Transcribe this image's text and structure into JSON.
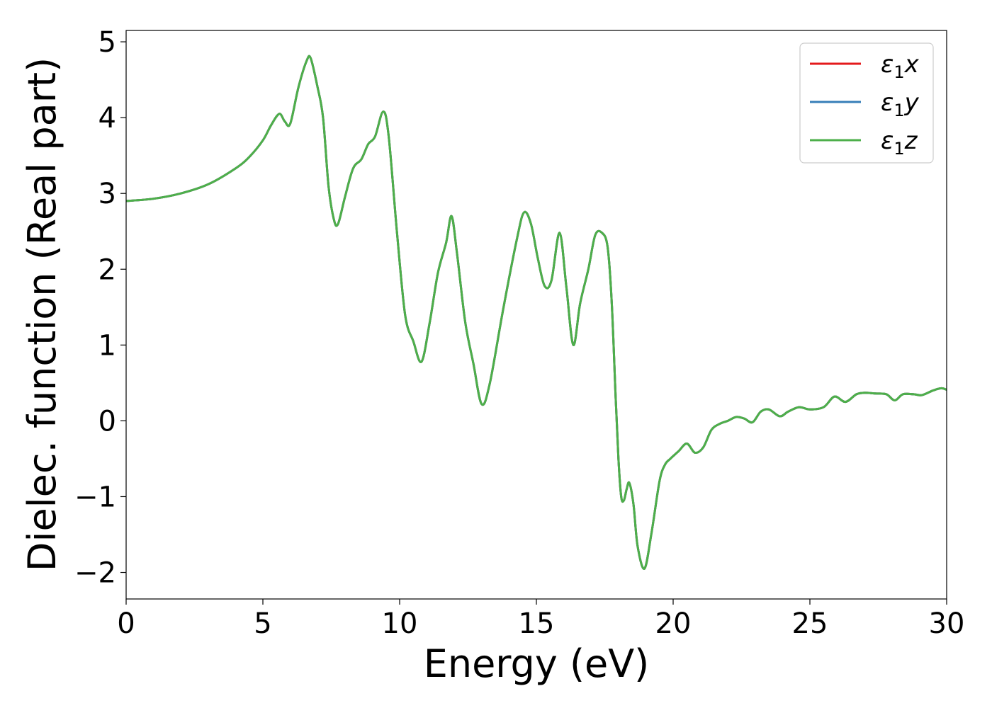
{
  "chart_data": {
    "type": "line",
    "title": "",
    "xlabel": "Energy (eV)",
    "ylabel": "Dielec. function (Real part)",
    "xlim": [
      0,
      30
    ],
    "ylim": [
      -2.35,
      5.15
    ],
    "xticks": [
      0,
      5,
      10,
      15,
      20,
      25,
      30
    ],
    "xtick_labels": [
      "0",
      "5",
      "10",
      "15",
      "20",
      "25",
      "30"
    ],
    "yticks": [
      -2,
      -1,
      0,
      1,
      2,
      3,
      4,
      5
    ],
    "ytick_labels": [
      "−2",
      "−1",
      "0",
      "1",
      "2",
      "3",
      "4",
      "5"
    ],
    "grid": false,
    "legend_position": "top-right",
    "series": [
      {
        "name": "ε₁x",
        "legend_main": "ε",
        "legend_sub": "1",
        "legend_var": "x",
        "color": "#e41a1c",
        "x": [
          0,
          1,
          2,
          3,
          4,
          4.5,
          5,
          5.3,
          5.6,
          5.8,
          6.0,
          6.3,
          6.6,
          6.75,
          7.0,
          7.2,
          7.4,
          7.6,
          7.75,
          8.0,
          8.3,
          8.6,
          8.85,
          9.1,
          9.4,
          9.6,
          9.9,
          10.2,
          10.5,
          10.8,
          11.1,
          11.4,
          11.7,
          11.9,
          12.1,
          12.4,
          12.7,
          13.0,
          13.3,
          13.8,
          14.3,
          14.55,
          14.8,
          15.05,
          15.3,
          15.55,
          15.85,
          16.1,
          16.35,
          16.6,
          16.9,
          17.15,
          17.4,
          17.6,
          17.75,
          17.9,
          18.0,
          18.1,
          18.2,
          18.3,
          18.4,
          18.55,
          18.7,
          18.95,
          19.2,
          19.5,
          19.7,
          19.9,
          20.2,
          20.5,
          20.8,
          21.1,
          21.4,
          21.7,
          22.0,
          22.3,
          22.6,
          22.9,
          23.2,
          23.5,
          23.9,
          24.2,
          24.6,
          25.0,
          25.5,
          25.9,
          26.3,
          26.7,
          27.0,
          27.4,
          27.8,
          28.1,
          28.4,
          28.8,
          29.1,
          29.5,
          29.8,
          30.0
        ],
        "y": [
          2.9,
          2.93,
          3.0,
          3.12,
          3.33,
          3.48,
          3.7,
          3.9,
          4.05,
          3.95,
          3.92,
          4.4,
          4.75,
          4.78,
          4.4,
          4.0,
          3.1,
          2.65,
          2.6,
          2.95,
          3.33,
          3.45,
          3.65,
          3.75,
          4.08,
          3.75,
          2.5,
          1.4,
          1.05,
          0.78,
          1.3,
          1.95,
          2.35,
          2.7,
          2.2,
          1.3,
          0.75,
          0.22,
          0.5,
          1.5,
          2.42,
          2.75,
          2.6,
          2.15,
          1.78,
          1.85,
          2.48,
          1.75,
          1.0,
          1.55,
          2.0,
          2.45,
          2.48,
          2.3,
          1.6,
          0.3,
          -0.5,
          -1.0,
          -1.05,
          -0.9,
          -0.82,
          -1.1,
          -1.65,
          -1.95,
          -1.5,
          -0.8,
          -0.58,
          -0.5,
          -0.4,
          -0.3,
          -0.42,
          -0.35,
          -0.12,
          -0.04,
          0.0,
          0.05,
          0.03,
          -0.02,
          0.12,
          0.15,
          0.06,
          0.12,
          0.18,
          0.15,
          0.18,
          0.32,
          0.25,
          0.35,
          0.37,
          0.36,
          0.35,
          0.27,
          0.35,
          0.35,
          0.34,
          0.4,
          0.43,
          0.41
        ]
      },
      {
        "name": "ε₁y",
        "legend_main": "ε",
        "legend_sub": "1",
        "legend_var": "y",
        "color": "#377eb8",
        "x": [
          0,
          1,
          2,
          3,
          4,
          4.5,
          5,
          5.3,
          5.6,
          5.8,
          6.0,
          6.3,
          6.6,
          6.75,
          7.0,
          7.2,
          7.4,
          7.6,
          7.75,
          8.0,
          8.3,
          8.6,
          8.85,
          9.1,
          9.4,
          9.6,
          9.9,
          10.2,
          10.5,
          10.8,
          11.1,
          11.4,
          11.7,
          11.9,
          12.1,
          12.4,
          12.7,
          13.0,
          13.3,
          13.8,
          14.3,
          14.55,
          14.8,
          15.05,
          15.3,
          15.55,
          15.85,
          16.1,
          16.35,
          16.6,
          16.9,
          17.15,
          17.4,
          17.6,
          17.75,
          17.9,
          18.0,
          18.1,
          18.2,
          18.3,
          18.4,
          18.55,
          18.7,
          18.95,
          19.2,
          19.5,
          19.7,
          19.9,
          20.2,
          20.5,
          20.8,
          21.1,
          21.4,
          21.7,
          22.0,
          22.3,
          22.6,
          22.9,
          23.2,
          23.5,
          23.9,
          24.2,
          24.6,
          25.0,
          25.5,
          25.9,
          26.3,
          26.7,
          27.0,
          27.4,
          27.8,
          28.1,
          28.4,
          28.8,
          29.1,
          29.5,
          29.8,
          30.0
        ],
        "y": [
          2.9,
          2.93,
          3.0,
          3.12,
          3.33,
          3.48,
          3.7,
          3.9,
          4.05,
          3.95,
          3.92,
          4.4,
          4.75,
          4.78,
          4.4,
          4.0,
          3.1,
          2.65,
          2.6,
          2.95,
          3.33,
          3.45,
          3.65,
          3.75,
          4.08,
          3.75,
          2.5,
          1.4,
          1.05,
          0.78,
          1.3,
          1.95,
          2.35,
          2.7,
          2.2,
          1.3,
          0.75,
          0.22,
          0.5,
          1.5,
          2.42,
          2.75,
          2.6,
          2.15,
          1.78,
          1.85,
          2.48,
          1.75,
          1.0,
          1.55,
          2.0,
          2.45,
          2.48,
          2.3,
          1.6,
          0.3,
          -0.5,
          -1.0,
          -1.05,
          -0.9,
          -0.82,
          -1.1,
          -1.65,
          -1.95,
          -1.5,
          -0.8,
          -0.58,
          -0.5,
          -0.4,
          -0.3,
          -0.42,
          -0.35,
          -0.12,
          -0.04,
          0.0,
          0.05,
          0.03,
          -0.02,
          0.12,
          0.15,
          0.06,
          0.12,
          0.18,
          0.15,
          0.18,
          0.32,
          0.25,
          0.35,
          0.37,
          0.36,
          0.35,
          0.27,
          0.35,
          0.35,
          0.34,
          0.4,
          0.43,
          0.41
        ]
      },
      {
        "name": "ε₁z",
        "legend_main": "ε",
        "legend_sub": "1",
        "legend_var": "z",
        "color": "#4daf4a",
        "x": [
          0,
          1,
          2,
          3,
          4,
          4.5,
          5,
          5.3,
          5.6,
          5.8,
          6.0,
          6.3,
          6.6,
          6.75,
          7.0,
          7.2,
          7.4,
          7.6,
          7.75,
          8.0,
          8.3,
          8.6,
          8.85,
          9.1,
          9.4,
          9.6,
          9.9,
          10.2,
          10.5,
          10.8,
          11.1,
          11.4,
          11.7,
          11.9,
          12.1,
          12.4,
          12.7,
          13.0,
          13.3,
          13.8,
          14.3,
          14.55,
          14.8,
          15.05,
          15.3,
          15.55,
          15.85,
          16.1,
          16.35,
          16.6,
          16.9,
          17.15,
          17.4,
          17.6,
          17.75,
          17.9,
          18.0,
          18.1,
          18.2,
          18.3,
          18.4,
          18.55,
          18.7,
          18.95,
          19.2,
          19.5,
          19.7,
          19.9,
          20.2,
          20.5,
          20.8,
          21.1,
          21.4,
          21.7,
          22.0,
          22.3,
          22.6,
          22.9,
          23.2,
          23.5,
          23.9,
          24.2,
          24.6,
          25.0,
          25.5,
          25.9,
          26.3,
          26.7,
          27.0,
          27.4,
          27.8,
          28.1,
          28.4,
          28.8,
          29.1,
          29.5,
          29.8,
          30.0
        ],
        "y": [
          2.9,
          2.93,
          3.0,
          3.12,
          3.33,
          3.48,
          3.7,
          3.9,
          4.05,
          3.95,
          3.92,
          4.4,
          4.75,
          4.78,
          4.4,
          4.0,
          3.1,
          2.65,
          2.6,
          2.95,
          3.33,
          3.45,
          3.65,
          3.75,
          4.08,
          3.75,
          2.5,
          1.4,
          1.05,
          0.78,
          1.3,
          1.95,
          2.35,
          2.7,
          2.2,
          1.3,
          0.75,
          0.22,
          0.5,
          1.5,
          2.42,
          2.75,
          2.6,
          2.15,
          1.78,
          1.85,
          2.48,
          1.75,
          1.0,
          1.55,
          2.0,
          2.45,
          2.48,
          2.3,
          1.6,
          0.3,
          -0.5,
          -1.0,
          -1.05,
          -0.9,
          -0.82,
          -1.1,
          -1.65,
          -1.95,
          -1.5,
          -0.8,
          -0.58,
          -0.5,
          -0.4,
          -0.3,
          -0.42,
          -0.35,
          -0.12,
          -0.04,
          0.0,
          0.05,
          0.03,
          -0.02,
          0.12,
          0.15,
          0.06,
          0.12,
          0.18,
          0.15,
          0.18,
          0.32,
          0.25,
          0.35,
          0.37,
          0.36,
          0.35,
          0.27,
          0.35,
          0.35,
          0.34,
          0.4,
          0.43,
          0.41
        ]
      }
    ]
  }
}
